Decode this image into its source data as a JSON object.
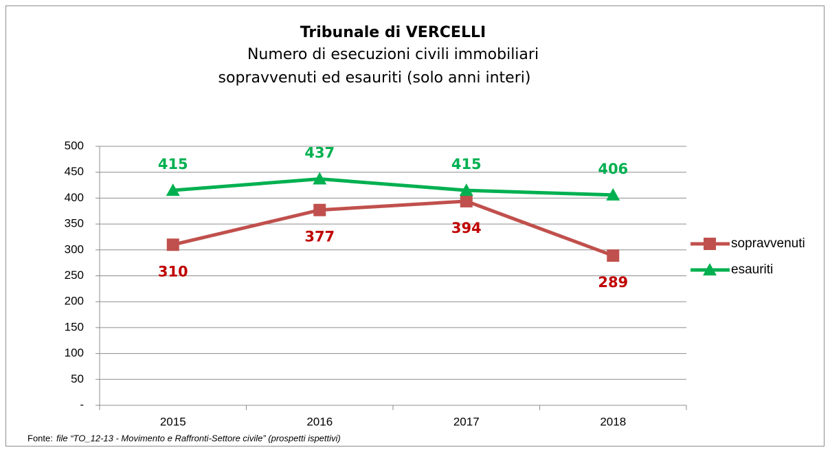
{
  "chart_data": {
    "type": "line",
    "title": "Tribunale di VERCELLI",
    "subtitle": [
      "Numero di esecuzioni civili immobiliari",
      "sopravvenuti ed esauriti (solo anni interi)"
    ],
    "categories": [
      "2015",
      "2016",
      "2017",
      "2018"
    ],
    "series": [
      {
        "name": "sopravvenuti",
        "color": "#c0504d",
        "label_color": "#c00000",
        "marker": "square",
        "label_position": "below",
        "values": [
          310,
          377,
          394,
          289
        ]
      },
      {
        "name": "esauriti",
        "color": "#00b050",
        "label_color": "#00b050",
        "marker": "triangle",
        "label_position": "above",
        "values": [
          415,
          437,
          415,
          406
        ]
      }
    ],
    "ylim": [
      0,
      500
    ],
    "yticks": [
      {
        "value": 0,
        "label": "-"
      },
      50,
      100,
      150,
      200,
      250,
      300,
      350,
      400,
      450,
      500
    ],
    "grid": true,
    "legend": "right",
    "source_label": "Fonte:",
    "source": "file “TO_12-13 - Movimento e Raffronti-Settore civile” (prospetti ispettivi)"
  }
}
